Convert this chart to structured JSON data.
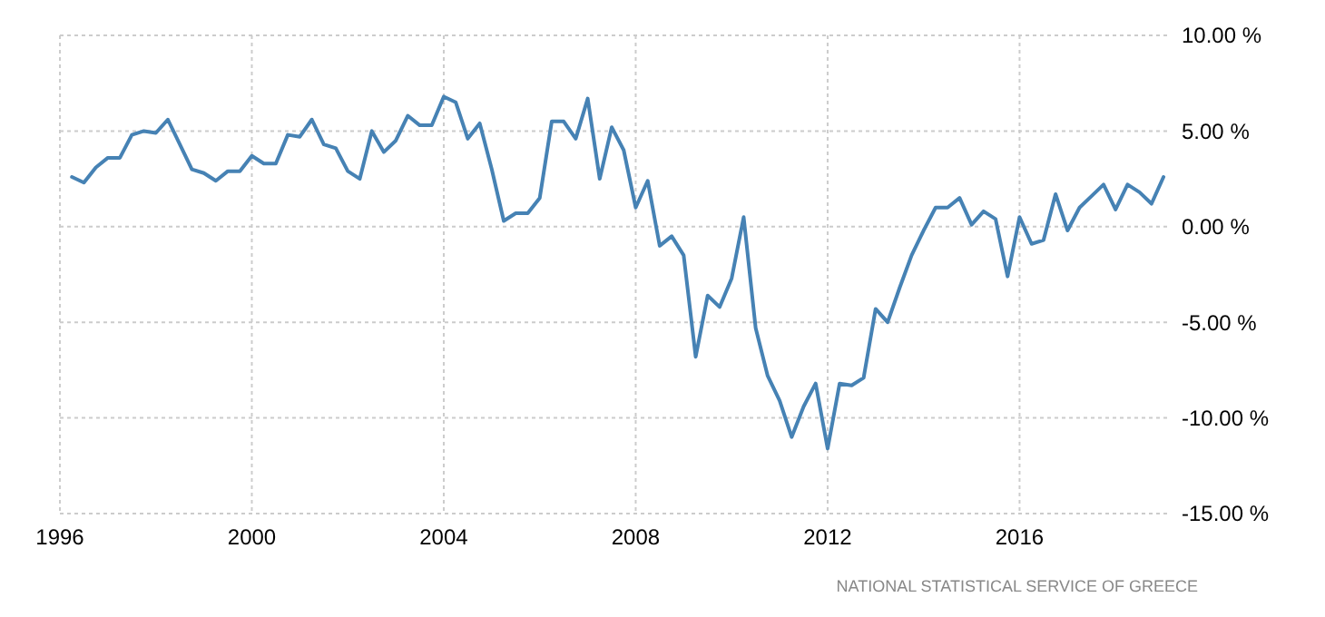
{
  "chart_data": {
    "type": "line",
    "xlim": [
      1996,
      2019.15
    ],
    "xticks": [
      1996,
      2000,
      2004,
      2008,
      2012,
      2016
    ],
    "ylim": [
      -15,
      10
    ],
    "yticks": [
      {
        "value": -15,
        "label": "-15.00 %"
      },
      {
        "value": -10,
        "label": "-10.00 %"
      },
      {
        "value": -5,
        "label": "-5.00 %"
      },
      {
        "value": 0,
        "label": "0.00 %"
      },
      {
        "value": 5,
        "label": "5.00 %"
      },
      {
        "value": 10,
        "label": "10.00 %"
      }
    ],
    "grid": true,
    "line_style": "solid",
    "marker": "none",
    "annotations": [
      "NATIONAL STATISTICAL SERVICE OF GREECE"
    ],
    "x": [
      1996.25,
      1996.5,
      1996.75,
      1997,
      1997.25,
      1997.5,
      1997.75,
      1998,
      1998.25,
      1998.5,
      1998.75,
      1999,
      1999.25,
      1999.5,
      1999.75,
      2000,
      2000.25,
      2000.5,
      2000.75,
      2001,
      2001.25,
      2001.5,
      2001.75,
      2002,
      2002.25,
      2002.5,
      2002.75,
      2003,
      2003.25,
      2003.5,
      2003.75,
      2004,
      2004.25,
      2004.5,
      2004.75,
      2005,
      2005.25,
      2005.5,
      2005.75,
      2006,
      2006.25,
      2006.5,
      2006.75,
      2007,
      2007.25,
      2007.5,
      2007.75,
      2008,
      2008.25,
      2008.5,
      2008.75,
      2009,
      2009.25,
      2009.5,
      2009.75,
      2010,
      2010.25,
      2010.5,
      2010.75,
      2011,
      2011.25,
      2011.5,
      2011.75,
      2012,
      2012.25,
      2012.5,
      2012.75,
      2013,
      2013.25,
      2013.5,
      2013.75,
      2014,
      2014.25,
      2014.5,
      2014.75,
      2015,
      2015.25,
      2015.5,
      2015.75,
      2016,
      2016.25,
      2016.5,
      2016.75,
      2017,
      2017.25,
      2017.5,
      2017.75,
      2018,
      2018.25,
      2018.5,
      2018.75,
      2019
    ],
    "series": [
      {
        "color": "#4682b4",
        "values": [
          2.6,
          2.3,
          3.1,
          3.6,
          3.6,
          4.8,
          5.0,
          4.9,
          5.6,
          4.3,
          3.0,
          2.8,
          2.4,
          2.9,
          2.9,
          3.7,
          3.3,
          3.3,
          4.8,
          4.7,
          5.6,
          4.3,
          4.1,
          2.9,
          2.5,
          5.0,
          3.9,
          4.5,
          5.8,
          5.3,
          5.3,
          6.8,
          6.5,
          4.6,
          5.4,
          3.0,
          0.3,
          0.7,
          0.7,
          1.5,
          5.5,
          5.5,
          4.6,
          6.7,
          2.5,
          5.2,
          4.0,
          1.0,
          2.4,
          -1.0,
          -0.5,
          -1.5,
          -6.8,
          -3.6,
          -4.2,
          -2.7,
          0.5,
          -5.3,
          -7.8,
          -9.1,
          -11.0,
          -9.4,
          -8.2,
          -11.6,
          -8.2,
          -8.3,
          -7.9,
          -4.3,
          -5.0,
          -3.2,
          -1.5,
          -0.2,
          1.0,
          1.0,
          1.5,
          0.1,
          0.8,
          0.4,
          -2.6,
          0.5,
          -0.9,
          -0.7,
          1.7,
          -0.2,
          1.0,
          1.6,
          2.2,
          0.9,
          2.2,
          1.8,
          1.2,
          2.6
        ]
      }
    ]
  }
}
